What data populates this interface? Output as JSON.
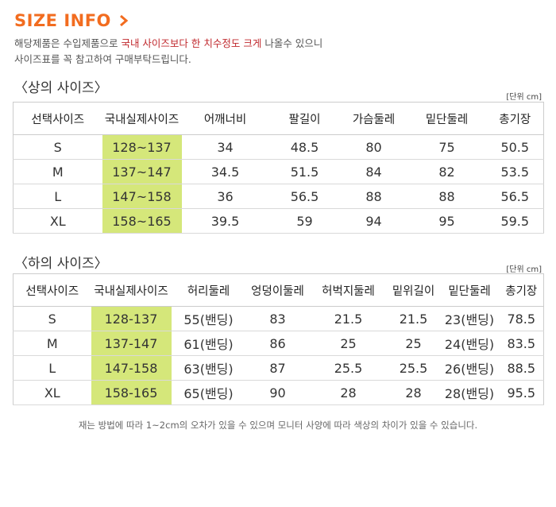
{
  "header": {
    "title": "SIZE INFO",
    "intro_line1_pre": "해당제품은 수입제품으로 ",
    "intro_line1_highlight": "국내 사이즈보다 한 치수정도 크게",
    "intro_line1_post": " 나올수 있으니",
    "intro_line2": "사이즈표를 꼭 참고하여 구매부탁드립니다."
  },
  "top_section": {
    "title": "〈상의 사이즈〉",
    "unit": "[단위 cm]",
    "columns": [
      "선택사이즈",
      "국내실제사이즈",
      "어깨너비",
      "팔길이",
      "가슴둘레",
      "밑단둘레",
      "총기장"
    ],
    "rows": [
      [
        "S",
        "128~137",
        "34",
        "48.5",
        "80",
        "75",
        "50.5"
      ],
      [
        "M",
        "137~147",
        "34.5",
        "51.5",
        "84",
        "82",
        "53.5"
      ],
      [
        "L",
        "147~158",
        "36",
        "56.5",
        "88",
        "88",
        "56.5"
      ],
      [
        "XL",
        "158~165",
        "39.5",
        "59",
        "94",
        "95",
        "59.5"
      ]
    ]
  },
  "bottom_section": {
    "title": "〈하의 사이즈〉",
    "unit": "[단위 cm]",
    "columns": [
      "선택사이즈",
      "국내실제사이즈",
      "허리둘레",
      "엉덩이둘레",
      "허벅지둘레",
      "밑위길이",
      "밑단둘레",
      "총기장"
    ],
    "rows": [
      [
        "S",
        "128-137",
        "55(밴딩)",
        "83",
        "21.5",
        "21.5",
        "23(밴딩)",
        "78.5"
      ],
      [
        "M",
        "137-147",
        "61(밴딩)",
        "86",
        "25",
        "25",
        "24(밴딩)",
        "83.5"
      ],
      [
        "L",
        "147-158",
        "63(밴딩)",
        "87",
        "25.5",
        "25.5",
        "26(밴딩)",
        "88.5"
      ],
      [
        "XL",
        "158-165",
        "65(밴딩)",
        "90",
        "28",
        "28",
        "28(밴딩)",
        "95.5"
      ]
    ]
  },
  "footnote": "재는 방법에 따라 1~2cm의 오차가 있을 수 있으며 모니터 사양에 따라 색상의 차이가 있을 수 있습니다.",
  "colors": {
    "title_orange": "#f26c1f",
    "highlight_red": "#c0282d",
    "column_highlight": "#d5e77a"
  },
  "icons": {
    "title_chevron": "chevron-right-icon"
  }
}
